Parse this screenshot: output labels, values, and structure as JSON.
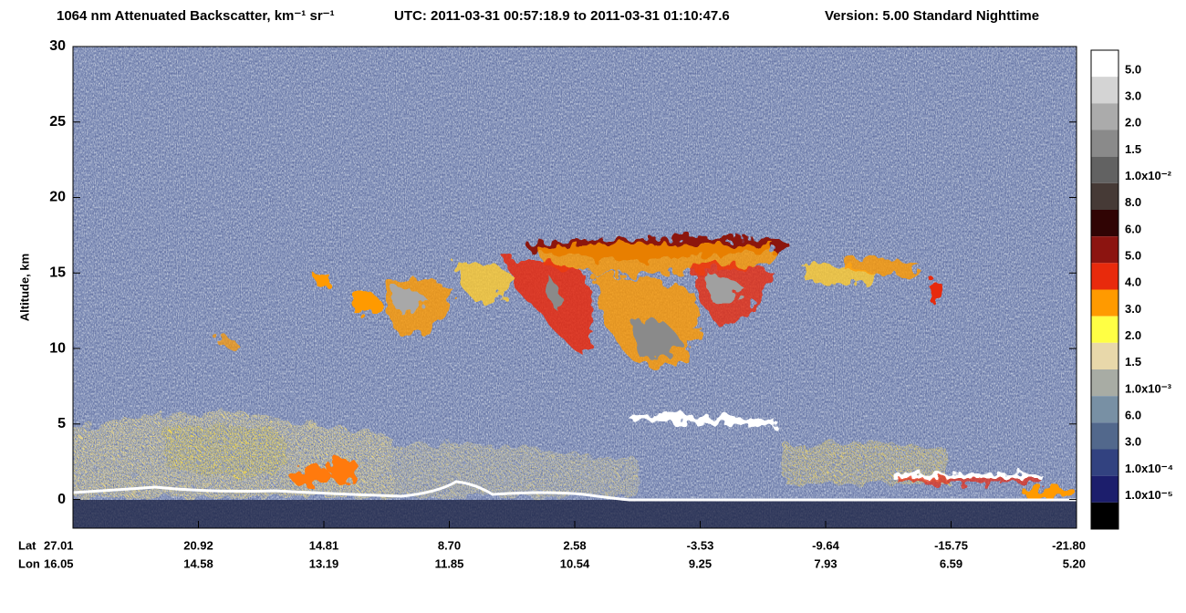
{
  "chart_data": {
    "type": "curtain",
    "title": "1064 nm Attenuated Backscatter, km⁻¹ sr⁻¹",
    "time_range": "UTC:  2011-03-31 00:57:18.9  to  2011-03-31 01:10:47.6",
    "version": "Version: 5.00  Standard  Nighttime",
    "ylabel": "Altitude, km",
    "ylim": [
      -1.9,
      30
    ],
    "yticks": [
      0,
      5,
      10,
      15,
      20,
      25,
      30
    ],
    "x_rows": [
      {
        "label": "Lat",
        "ticks": [
          "27.01",
          "20.92",
          "14.81",
          "8.70",
          "2.58",
          "-3.53",
          "-9.64",
          "-15.75",
          "-21.80"
        ]
      },
      {
        "label": "Lon",
        "ticks": [
          "16.05",
          "14.58",
          "13.19",
          "11.85",
          "10.54",
          "9.25",
          "7.93",
          "6.59",
          "5.20"
        ]
      }
    ],
    "colorbar": {
      "colors": [
        "#ffffff",
        "#d4d4d4",
        "#ababab",
        "#8a8a8a",
        "#626262",
        "#463a36",
        "#300404",
        "#8c1410",
        "#e82a0c",
        "#ff9a00",
        "#ffff44",
        "#e8d8aa",
        "#a8aca4",
        "#7890a4",
        "#52688c",
        "#324280",
        "#1c1e6c",
        "#000000"
      ],
      "labels": [
        "5.0",
        "3.0",
        "2.0",
        "1.5",
        "1.0x10⁻²",
        "8.0",
        "6.0",
        "5.0",
        "4.0",
        "3.0",
        "2.0",
        "1.5",
        "1.0x10⁻³",
        "6.0",
        "3.0",
        "1.0x10⁻⁴",
        "1.0x10⁻⁵"
      ]
    }
  }
}
